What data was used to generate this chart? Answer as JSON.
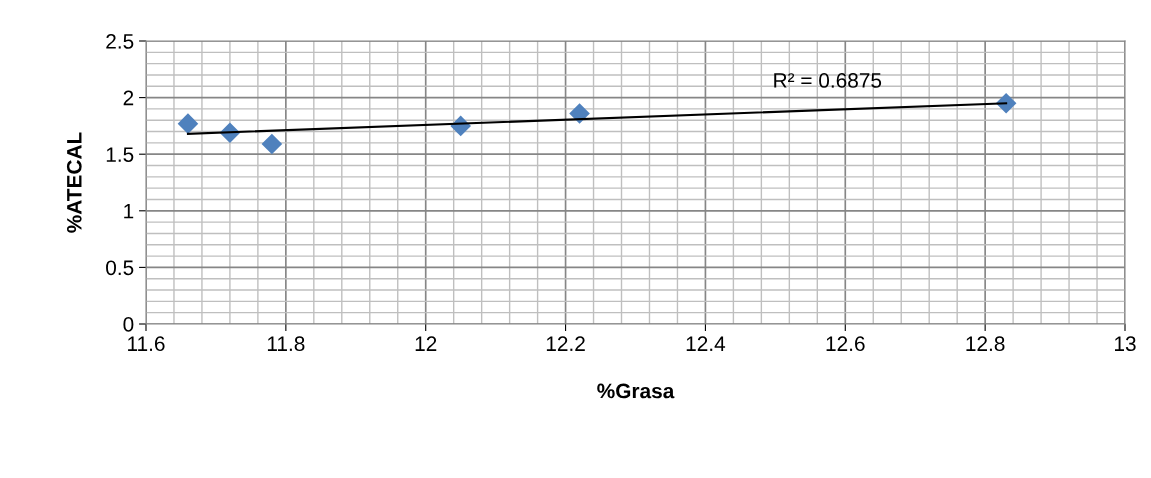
{
  "chart_data": {
    "type": "scatter",
    "xlabel": "%Grasa",
    "ylabel": "%ATECAL",
    "series": [
      {
        "color": "#4f81bd",
        "marker": "diamond",
        "x": [
          11.66,
          11.72,
          11.78,
          12.05,
          12.22,
          12.83
        ],
        "values": [
          1.77,
          1.69,
          1.59,
          1.75,
          1.86,
          1.95
        ]
      },
      {
        "type": "line",
        "color": "#000000",
        "marker": "none",
        "line_style": "solid",
        "x": [
          11.66,
          12.83
        ],
        "values": [
          1.68,
          1.95
        ]
      }
    ],
    "annotations": [
      "R² = 0.6875"
    ],
    "xlim": [
      11.6,
      13
    ],
    "xticks": [
      11.6,
      11.8,
      12,
      12.2,
      12.4,
      12.6,
      12.8,
      13
    ],
    "ylim": [
      0,
      2.5
    ],
    "yticks": [
      0,
      0.5,
      1,
      1.5,
      2,
      2.5
    ],
    "grid": true,
    "legend": false
  }
}
